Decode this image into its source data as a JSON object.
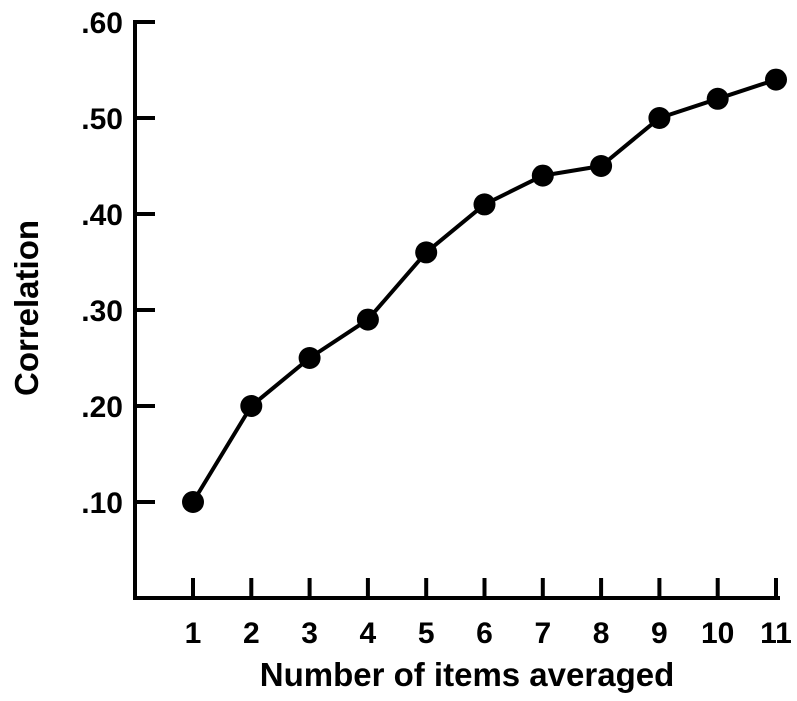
{
  "chart_data": {
    "type": "line",
    "title": "",
    "xlabel": "Number of items averaged",
    "ylabel": "Correlation",
    "x": [
      1,
      2,
      3,
      4,
      5,
      6,
      7,
      8,
      9,
      10,
      11
    ],
    "x_tick_labels": [
      "1",
      "2",
      "3",
      "4",
      "5",
      "6",
      "7",
      "8",
      "9",
      "10",
      "11"
    ],
    "y_ticks": [
      0.1,
      0.2,
      0.3,
      0.4,
      0.5,
      0.6
    ],
    "y_tick_labels": [
      ".10",
      ".20",
      ".30",
      ".40",
      ".50",
      ".60"
    ],
    "ylim": [
      0.0,
      0.6
    ],
    "xlim": [
      0,
      11
    ],
    "grid": false,
    "series": [
      {
        "values": [
          0.1,
          0.2,
          0.25,
          0.29,
          0.36,
          0.41,
          0.44,
          0.45,
          0.5,
          0.52,
          0.54
        ]
      }
    ],
    "colors": {
      "line": "#000000",
      "marker": "#000000",
      "axis": "#000000"
    }
  }
}
